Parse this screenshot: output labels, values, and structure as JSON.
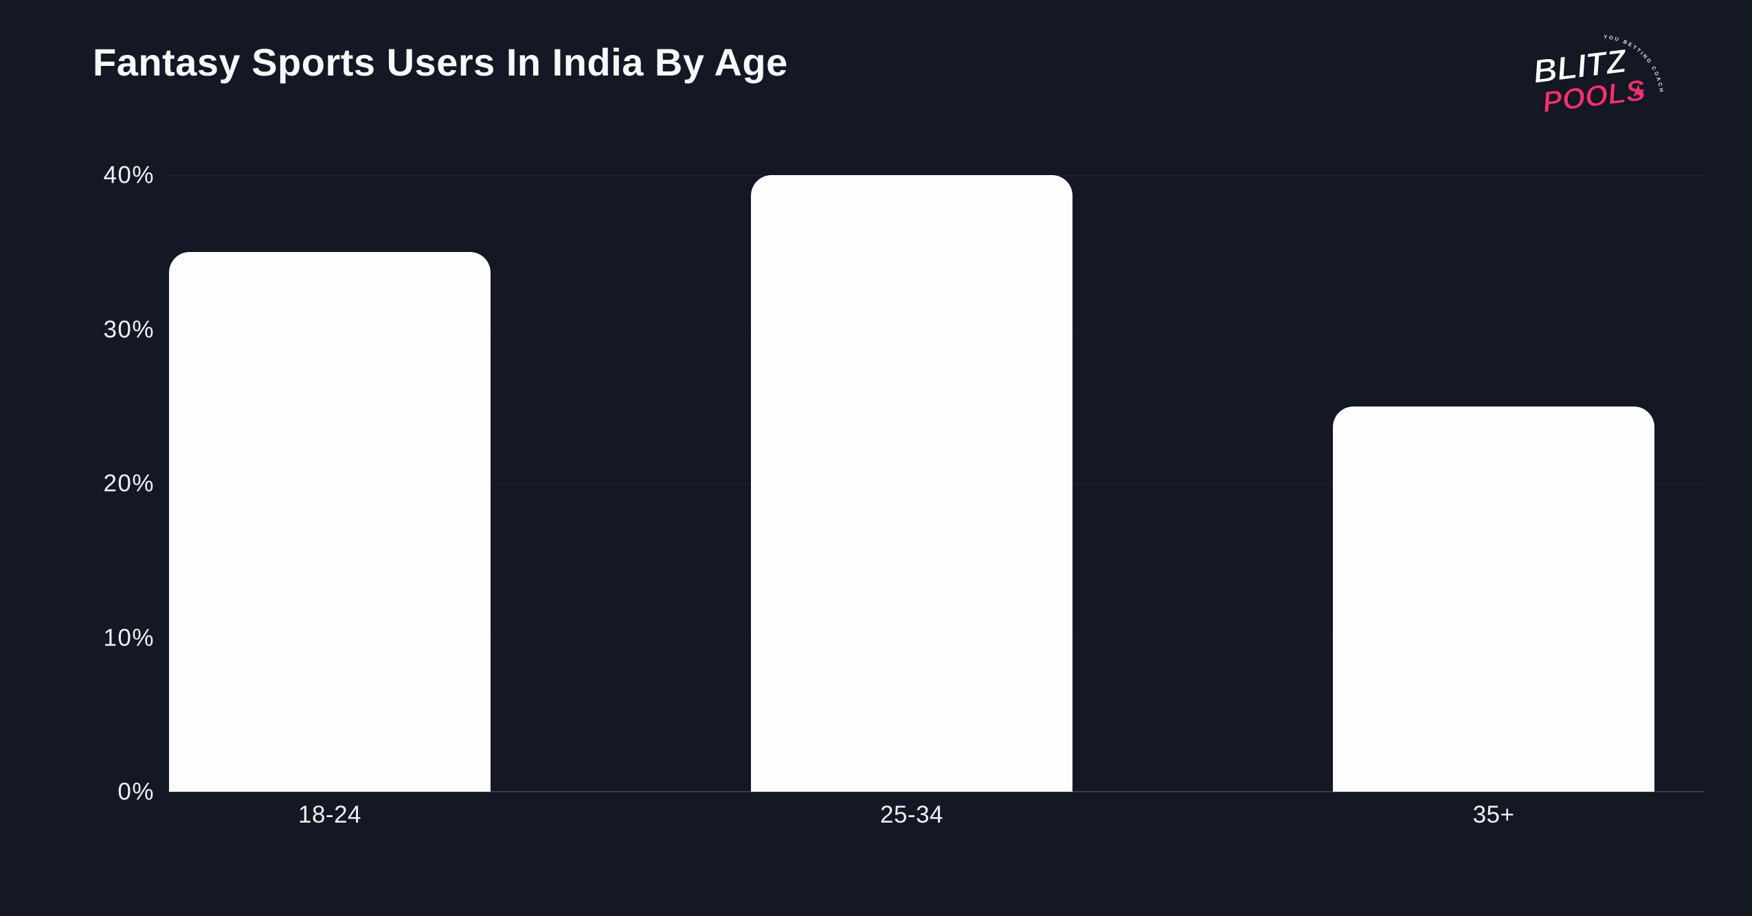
{
  "page": {
    "background_color": "#141824"
  },
  "header": {
    "title": "Fantasy Sports Users In India By Age"
  },
  "brand": {
    "name_line1": "BLITZ",
    "name_line2": "POOLS",
    "tagline": "YOU BETTING COACH",
    "star": "★",
    "accent_color": "#f0316f",
    "text_color": "#ffffff"
  },
  "chart_data": {
    "type": "bar",
    "title": "Fantasy Sports Users In India By Age",
    "categories": [
      "18-24",
      "25-34",
      "35+"
    ],
    "values": [
      35,
      40,
      25
    ],
    "value_unit": "%",
    "ylim": [
      0,
      40
    ],
    "yticks": [
      "0%",
      "10%",
      "20%",
      "30%",
      "40%"
    ],
    "grid": true,
    "legend": false,
    "bar_color": "#fdfdfd",
    "label_color": "#eef1f4"
  }
}
